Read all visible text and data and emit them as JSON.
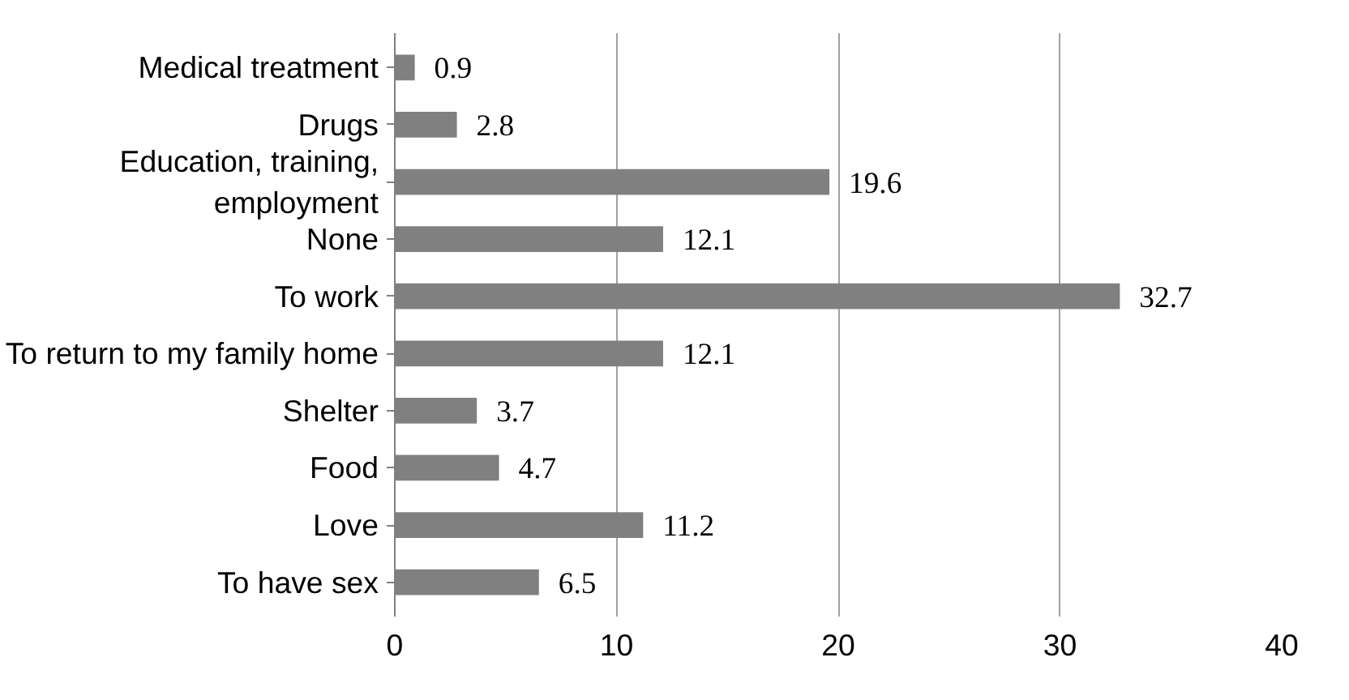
{
  "chart_data": {
    "type": "bar",
    "orientation": "horizontal",
    "categories": [
      "Medical treatment",
      "Drugs",
      "Education, training, employment",
      "None",
      "To work",
      "To return to my family home",
      "Shelter",
      "Food",
      "Love",
      "To have sex"
    ],
    "values": [
      0.9,
      2.8,
      19.6,
      12.1,
      32.7,
      12.1,
      3.7,
      4.7,
      11.2,
      6.5
    ],
    "color": "#808080",
    "xlim": [
      0,
      40
    ],
    "xticks": [
      0,
      10,
      20,
      30,
      40
    ],
    "grid": "x",
    "data_labels": true
  }
}
